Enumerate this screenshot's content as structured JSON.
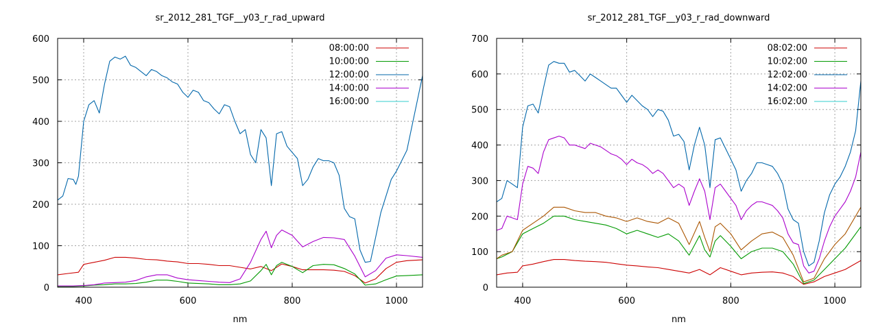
{
  "chart_data": [
    {
      "type": "line",
      "title": "sr_2012_281_TGF__y03_r_rad_upward",
      "xlabel": "nm",
      "ylabel": "",
      "xlim": [
        350,
        1050
      ],
      "ylim": [
        0,
        600
      ],
      "xticks": [
        400,
        600,
        800,
        1000
      ],
      "yticks": [
        0,
        100,
        200,
        300,
        400,
        500,
        600
      ],
      "grid": true,
      "legend_position": "top-right",
      "series": [
        {
          "name": "08:00:00",
          "color": "#cc0000",
          "x": [
            350,
            370,
            390,
            400,
            420,
            440,
            460,
            480,
            500,
            520,
            540,
            560,
            580,
            600,
            620,
            640,
            660,
            680,
            700,
            720,
            740,
            760,
            780,
            800,
            820,
            840,
            860,
            880,
            900,
            920,
            940,
            960,
            980,
            1000,
            1020,
            1050
          ],
          "y": [
            30,
            33,
            36,
            55,
            60,
            65,
            72,
            72,
            70,
            67,
            66,
            63,
            61,
            57,
            57,
            55,
            52,
            52,
            48,
            44,
            50,
            40,
            56,
            50,
            42,
            42,
            42,
            41,
            38,
            28,
            10,
            20,
            45,
            60,
            64,
            66
          ]
        },
        {
          "name": "10:00:00",
          "color": "#009900",
          "x": [
            350,
            380,
            400,
            420,
            440,
            460,
            480,
            500,
            520,
            540,
            560,
            580,
            600,
            620,
            640,
            660,
            680,
            700,
            720,
            740,
            750,
            760,
            770,
            780,
            800,
            820,
            840,
            860,
            880,
            900,
            920,
            940,
            960,
            980,
            1000,
            1020,
            1050
          ],
          "y": [
            2,
            2,
            3,
            5,
            6,
            8,
            8,
            9,
            12,
            17,
            17,
            14,
            10,
            9,
            8,
            6,
            6,
            8,
            15,
            40,
            55,
            30,
            52,
            60,
            50,
            35,
            52,
            55,
            54,
            45,
            32,
            5,
            8,
            18,
            27,
            28,
            30
          ]
        },
        {
          "name": "12:00:00",
          "color": "#0066aa",
          "x": [
            350,
            360,
            370,
            380,
            385,
            390,
            400,
            410,
            420,
            430,
            440,
            450,
            460,
            470,
            480,
            490,
            500,
            510,
            520,
            530,
            540,
            550,
            560,
            570,
            580,
            590,
            600,
            610,
            620,
            630,
            640,
            650,
            660,
            670,
            680,
            690,
            700,
            710,
            720,
            730,
            740,
            750,
            760,
            770,
            780,
            790,
            800,
            810,
            820,
            830,
            840,
            850,
            860,
            870,
            880,
            890,
            900,
            910,
            920,
            930,
            940,
            950,
            960,
            970,
            980,
            990,
            1000,
            1010,
            1020,
            1030,
            1040,
            1050
          ],
          "y": [
            210,
            220,
            262,
            260,
            248,
            268,
            400,
            440,
            450,
            420,
            490,
            545,
            555,
            550,
            557,
            535,
            530,
            520,
            510,
            525,
            520,
            510,
            505,
            495,
            490,
            470,
            458,
            475,
            470,
            450,
            445,
            430,
            418,
            440,
            435,
            400,
            370,
            380,
            320,
            300,
            380,
            360,
            245,
            370,
            375,
            340,
            325,
            310,
            245,
            260,
            290,
            310,
            305,
            305,
            300,
            270,
            190,
            170,
            165,
            90,
            60,
            62,
            120,
            180,
            220,
            260,
            280,
            305,
            330,
            390,
            450,
            510
          ]
        },
        {
          "name": "14:00:00",
          "color": "#aa00cc",
          "x": [
            350,
            380,
            400,
            420,
            440,
            460,
            480,
            500,
            520,
            540,
            560,
            580,
            600,
            620,
            640,
            660,
            680,
            700,
            720,
            740,
            750,
            760,
            770,
            780,
            800,
            820,
            840,
            860,
            880,
            900,
            920,
            940,
            960,
            980,
            1000,
            1020,
            1050
          ],
          "y": [
            3,
            3,
            4,
            6,
            10,
            11,
            12,
            16,
            25,
            30,
            30,
            22,
            18,
            16,
            14,
            12,
            11,
            20,
            60,
            115,
            135,
            95,
            125,
            138,
            125,
            97,
            110,
            120,
            119,
            115,
            75,
            25,
            40,
            70,
            78,
            76,
            72
          ]
        },
        {
          "name": "16:00:00",
          "color": "#33cccc",
          "x": [
            350,
            400,
            500,
            600,
            700,
            800,
            900,
            1000,
            1050
          ],
          "y": [
            0,
            0,
            0,
            0,
            0,
            0,
            0,
            0,
            0
          ]
        }
      ]
    },
    {
      "type": "line",
      "title": "sr_2012_281_TGF__y03_r_rad_downward",
      "xlabel": "nm",
      "ylabel": "",
      "xlim": [
        350,
        1050
      ],
      "ylim": [
        0,
        700
      ],
      "xticks": [
        400,
        600,
        800,
        1000
      ],
      "yticks": [
        0,
        100,
        200,
        300,
        400,
        500,
        600,
        700
      ],
      "grid": true,
      "legend_position": "top-right",
      "series": [
        {
          "name": "08:02:00",
          "color": "#cc0000",
          "x": [
            350,
            370,
            390,
            400,
            420,
            440,
            460,
            480,
            500,
            520,
            540,
            560,
            580,
            600,
            620,
            640,
            660,
            680,
            700,
            720,
            740,
            760,
            780,
            800,
            820,
            840,
            860,
            880,
            900,
            920,
            940,
            960,
            980,
            1000,
            1020,
            1050
          ],
          "y": [
            35,
            40,
            42,
            60,
            65,
            72,
            78,
            78,
            75,
            73,
            72,
            70,
            66,
            62,
            60,
            57,
            55,
            50,
            45,
            40,
            50,
            35,
            55,
            45,
            35,
            40,
            42,
            43,
            40,
            30,
            8,
            15,
            30,
            40,
            50,
            75
          ]
        },
        {
          "name": "10:02:00",
          "color": "#009900",
          "x": [
            350,
            360,
            380,
            400,
            420,
            440,
            460,
            480,
            500,
            520,
            540,
            560,
            580,
            600,
            620,
            640,
            660,
            680,
            700,
            720,
            740,
            750,
            760,
            770,
            780,
            800,
            820,
            840,
            860,
            880,
            900,
            920,
            940,
            960,
            980,
            1000,
            1020,
            1050
          ],
          "y": [
            80,
            85,
            100,
            150,
            165,
            180,
            200,
            200,
            190,
            185,
            180,
            175,
            165,
            150,
            160,
            150,
            140,
            150,
            130,
            90,
            145,
            105,
            85,
            130,
            145,
            115,
            80,
            100,
            110,
            110,
            100,
            65,
            10,
            20,
            50,
            80,
            110,
            170
          ]
        },
        {
          "name": "12:02:00",
          "color": "#0066aa",
          "x": [
            350,
            360,
            370,
            380,
            390,
            400,
            410,
            420,
            430,
            440,
            450,
            460,
            470,
            480,
            490,
            500,
            510,
            520,
            530,
            540,
            550,
            560,
            570,
            580,
            590,
            600,
            610,
            620,
            630,
            640,
            650,
            660,
            670,
            680,
            690,
            700,
            710,
            720,
            730,
            740,
            750,
            760,
            770,
            780,
            790,
            800,
            810,
            820,
            830,
            840,
            850,
            860,
            870,
            880,
            890,
            900,
            910,
            920,
            930,
            940,
            950,
            960,
            970,
            980,
            990,
            1000,
            1010,
            1020,
            1030,
            1040,
            1050
          ],
          "y": [
            240,
            250,
            300,
            290,
            280,
            450,
            510,
            515,
            490,
            560,
            625,
            635,
            630,
            630,
            605,
            610,
            595,
            580,
            600,
            590,
            580,
            570,
            560,
            560,
            540,
            520,
            540,
            525,
            510,
            500,
            480,
            500,
            495,
            470,
            425,
            430,
            410,
            330,
            400,
            450,
            400,
            280,
            415,
            420,
            390,
            360,
            330,
            270,
            300,
            320,
            350,
            350,
            345,
            340,
            320,
            290,
            220,
            190,
            180,
            100,
            60,
            70,
            130,
            210,
            260,
            290,
            310,
            340,
            380,
            440,
            580
          ]
        },
        {
          "name": "14:02:00",
          "color": "#aa00cc",
          "x": [
            350,
            360,
            370,
            380,
            390,
            400,
            410,
            420,
            430,
            440,
            450,
            460,
            470,
            480,
            490,
            500,
            510,
            520,
            530,
            540,
            550,
            560,
            570,
            580,
            590,
            600,
            610,
            620,
            630,
            640,
            650,
            660,
            670,
            680,
            690,
            700,
            710,
            720,
            730,
            740,
            750,
            760,
            770,
            780,
            790,
            800,
            810,
            820,
            830,
            840,
            850,
            860,
            870,
            880,
            890,
            900,
            910,
            920,
            930,
            940,
            950,
            960,
            970,
            980,
            990,
            1000,
            1010,
            1020,
            1030,
            1040,
            1050
          ],
          "y": [
            160,
            165,
            200,
            195,
            190,
            290,
            340,
            335,
            320,
            380,
            415,
            420,
            425,
            420,
            400,
            400,
            395,
            390,
            405,
            400,
            395,
            385,
            375,
            370,
            360,
            345,
            360,
            350,
            345,
            335,
            320,
            330,
            320,
            300,
            280,
            290,
            280,
            230,
            270,
            305,
            270,
            190,
            280,
            290,
            270,
            250,
            230,
            190,
            215,
            230,
            240,
            240,
            235,
            230,
            215,
            195,
            150,
            125,
            120,
            60,
            40,
            45,
            80,
            130,
            170,
            200,
            220,
            240,
            270,
            310,
            380
          ]
        },
        {
          "name": "16:02:00",
          "color": "#33cccc",
          "x": [
            350,
            400,
            500,
            600,
            700,
            800,
            900,
            1000,
            1050
          ],
          "y": [
            0,
            0,
            0,
            0,
            0,
            0,
            0,
            0,
            0
          ]
        },
        {
          "name": "",
          "color": "#aa5500",
          "x": [
            350,
            360,
            380,
            400,
            420,
            440,
            460,
            480,
            500,
            520,
            540,
            560,
            580,
            600,
            620,
            640,
            660,
            680,
            700,
            720,
            740,
            750,
            760,
            770,
            780,
            800,
            820,
            840,
            860,
            880,
            900,
            920,
            940,
            960,
            980,
            1000,
            1020,
            1050
          ],
          "y": [
            80,
            90,
            100,
            160,
            180,
            200,
            225,
            225,
            215,
            210,
            210,
            200,
            195,
            185,
            195,
            185,
            180,
            195,
            180,
            120,
            185,
            140,
            100,
            170,
            180,
            150,
            105,
            130,
            150,
            155,
            140,
            90,
            15,
            25,
            80,
            120,
            150,
            225
          ]
        }
      ]
    }
  ]
}
